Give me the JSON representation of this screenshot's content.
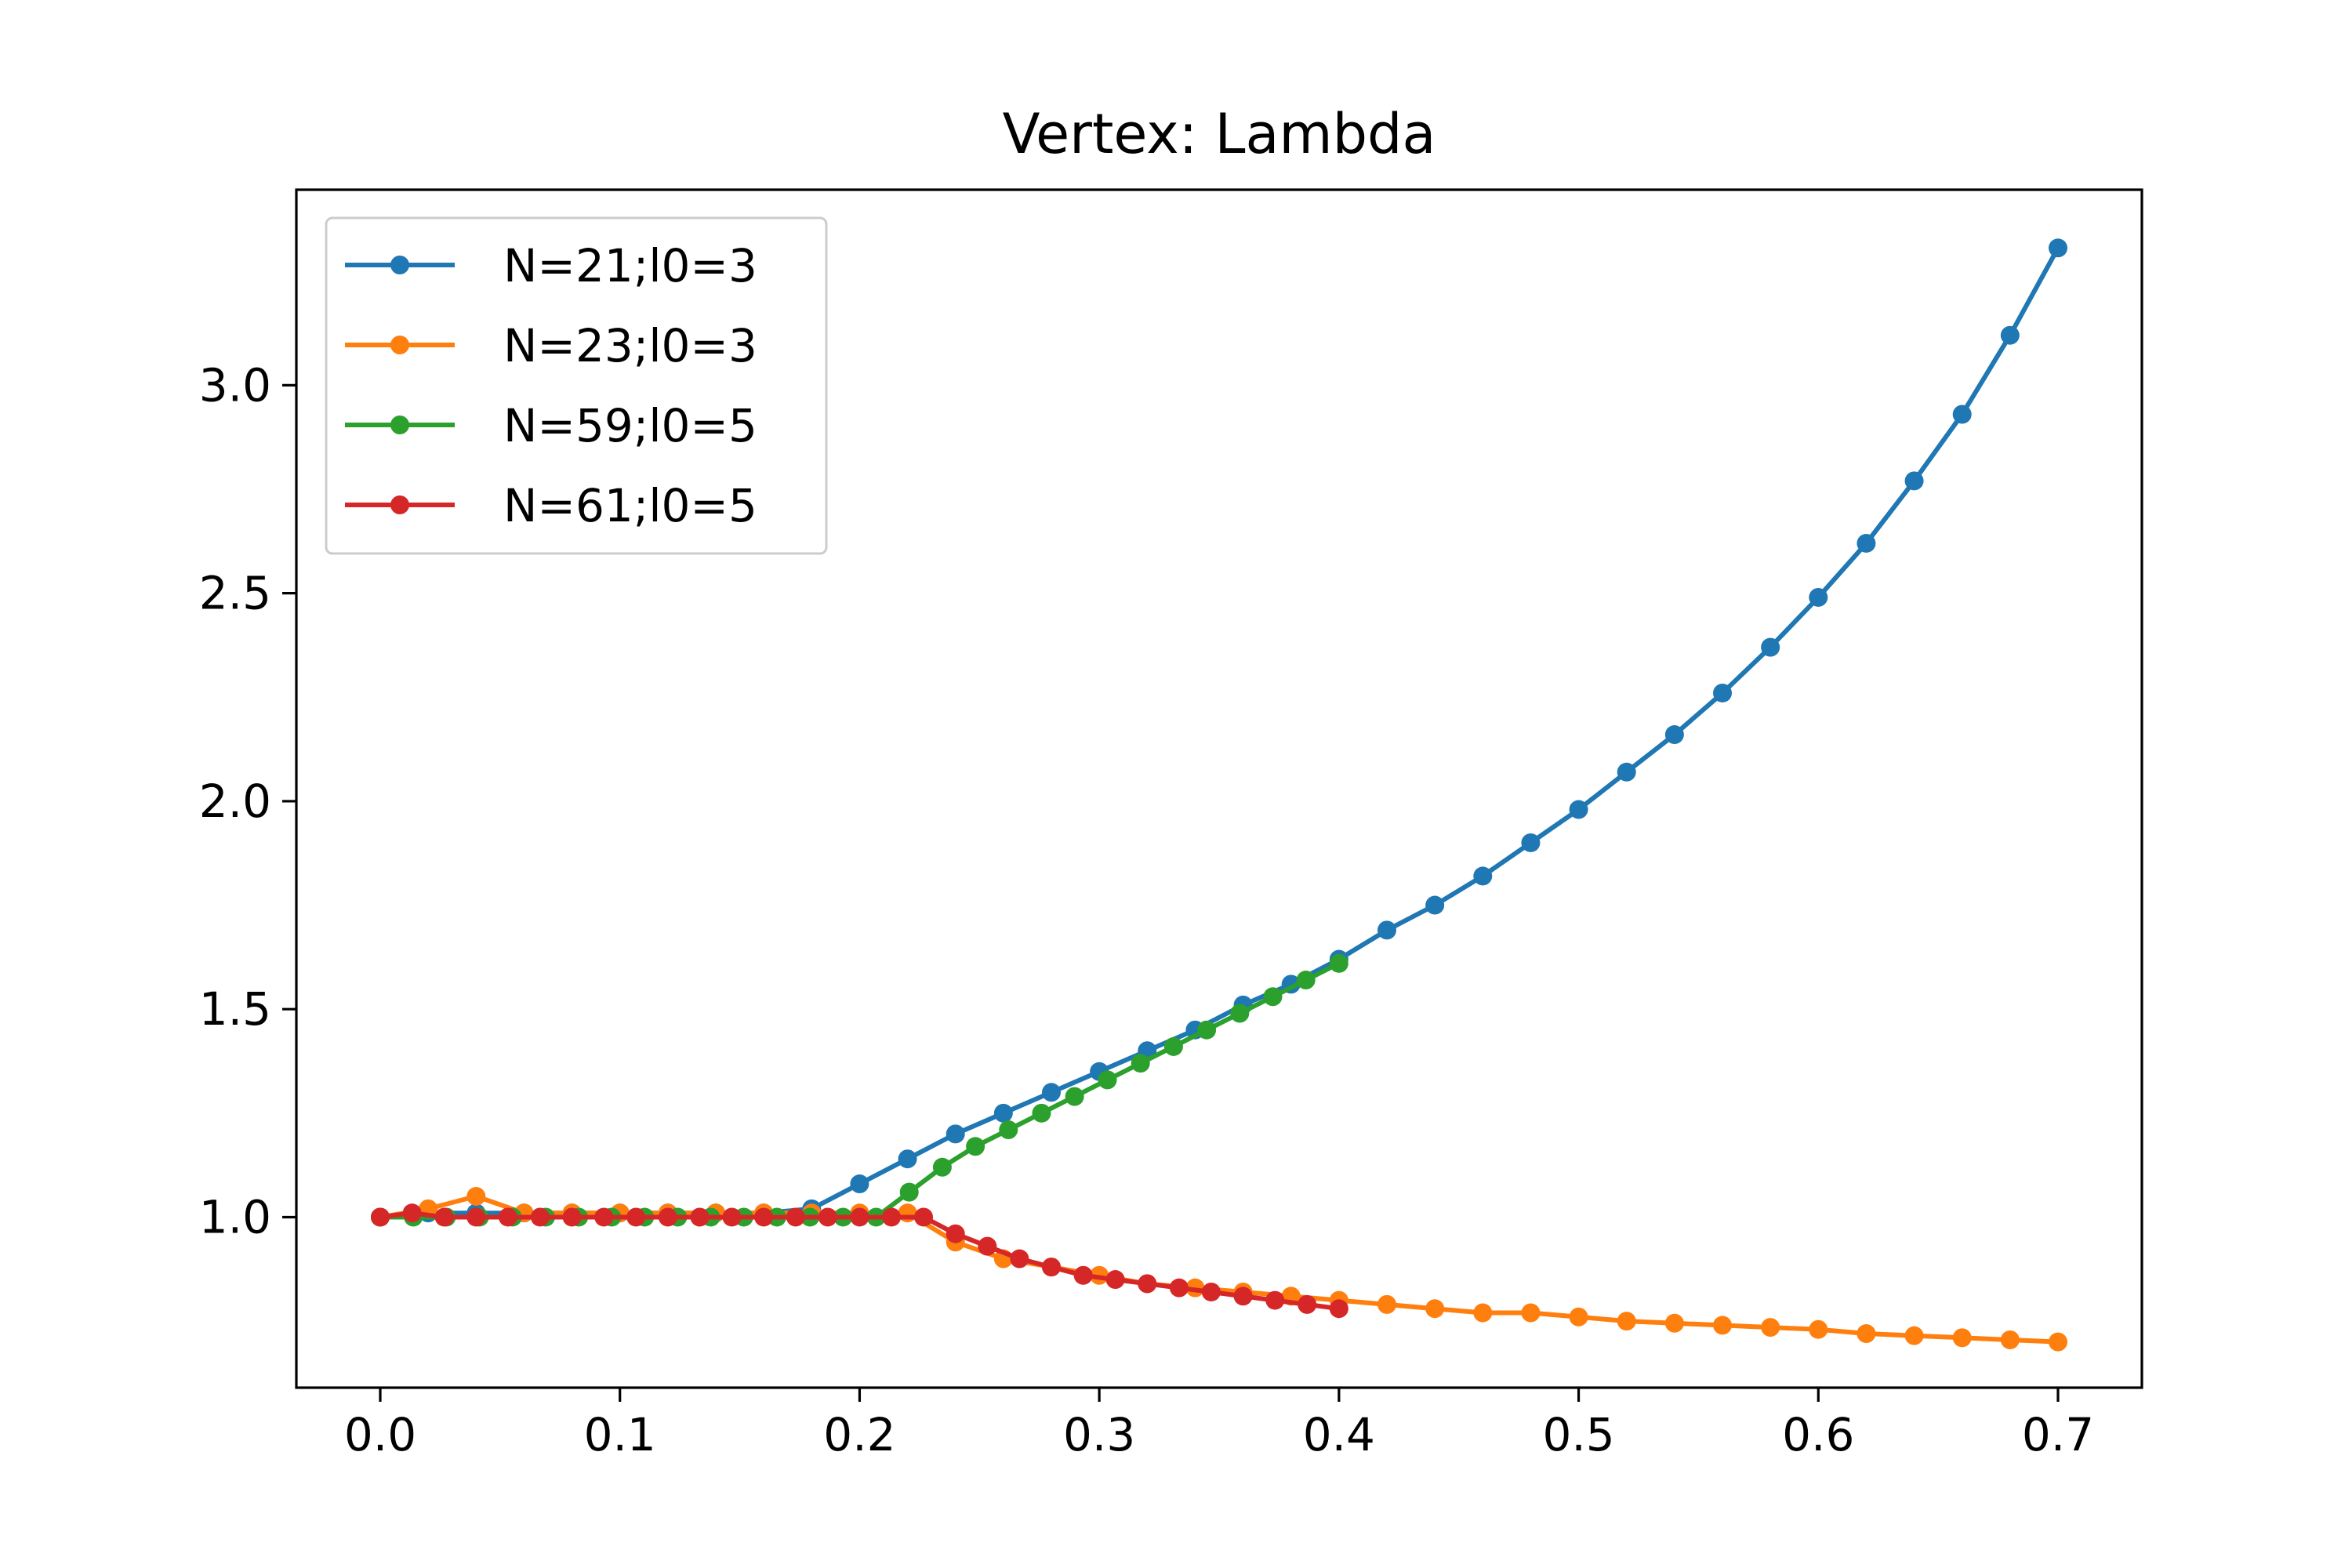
{
  "chart_data": {
    "type": "line",
    "title": "Vertex: Lambda",
    "xlabel": "",
    "ylabel": "",
    "xlim": [
      -0.035,
      0.735
    ],
    "ylim": [
      0.59,
      3.47
    ],
    "x_ticks": [
      0.0,
      0.1,
      0.2,
      0.3,
      0.4,
      0.5,
      0.6,
      0.7
    ],
    "x_tick_labels": [
      "0.0",
      "0.1",
      "0.2",
      "0.3",
      "0.4",
      "0.5",
      "0.6",
      "0.7"
    ],
    "y_ticks": [
      1.0,
      1.5,
      2.0,
      2.5,
      3.0
    ],
    "y_tick_labels": [
      "1.0",
      "1.5",
      "2.0",
      "2.5",
      "3.0"
    ],
    "grid": false,
    "legend_position": "upper-left",
    "series": [
      {
        "name": "N=21;l0=3",
        "color": "#1f77b4",
        "x": [
          0.0,
          0.02,
          0.04,
          0.06,
          0.08,
          0.1,
          0.12,
          0.14,
          0.16,
          0.18,
          0.2,
          0.22,
          0.24,
          0.26,
          0.28,
          0.3,
          0.32,
          0.34,
          0.36,
          0.38,
          0.4,
          0.42,
          0.44,
          0.46,
          0.48,
          0.5,
          0.52,
          0.54,
          0.56,
          0.58,
          0.6,
          0.62,
          0.64,
          0.66,
          0.68,
          0.7
        ],
        "y": [
          1.0,
          1.01,
          1.01,
          1.01,
          1.01,
          1.01,
          1.01,
          1.01,
          1.01,
          1.02,
          1.08,
          1.14,
          1.2,
          1.25,
          1.3,
          1.35,
          1.4,
          1.45,
          1.51,
          1.56,
          1.62,
          1.69,
          1.75,
          1.82,
          1.9,
          1.98,
          2.07,
          2.16,
          2.26,
          2.37,
          2.49,
          2.62,
          2.77,
          2.93,
          3.12,
          3.33
        ]
      },
      {
        "name": "N=23;l0=3",
        "color": "#ff7f0e",
        "x": [
          0.0,
          0.02,
          0.04,
          0.06,
          0.08,
          0.1,
          0.12,
          0.14,
          0.16,
          0.18,
          0.2,
          0.22,
          0.24,
          0.26,
          0.28,
          0.3,
          0.32,
          0.34,
          0.36,
          0.38,
          0.4,
          0.42,
          0.44,
          0.46,
          0.48,
          0.5,
          0.52,
          0.54,
          0.56,
          0.58,
          0.6,
          0.62,
          0.64,
          0.66,
          0.68,
          0.7
        ],
        "y": [
          1.0,
          1.02,
          1.05,
          1.01,
          1.01,
          1.01,
          1.01,
          1.01,
          1.01,
          1.01,
          1.01,
          1.01,
          0.94,
          0.9,
          0.88,
          0.86,
          0.84,
          0.83,
          0.82,
          0.81,
          0.8,
          0.79,
          0.78,
          0.77,
          0.77,
          0.76,
          0.75,
          0.745,
          0.74,
          0.735,
          0.73,
          0.72,
          0.715,
          0.71,
          0.705,
          0.7
        ]
      },
      {
        "name": "N=59;l0=5",
        "color": "#2ca02c",
        "x": [
          0.0,
          0.0138,
          0.0276,
          0.0414,
          0.0552,
          0.069,
          0.0828,
          0.0966,
          0.1103,
          0.1241,
          0.1379,
          0.1517,
          0.1655,
          0.1793,
          0.1931,
          0.2069,
          0.2207,
          0.2345,
          0.2483,
          0.2621,
          0.2759,
          0.2897,
          0.3034,
          0.3172,
          0.331,
          0.3448,
          0.3586,
          0.3724,
          0.3862,
          0.4
        ],
        "y": [
          1.0,
          1.0,
          1.0,
          1.0,
          1.0,
          1.0,
          1.0,
          1.0,
          1.0,
          1.0,
          1.0,
          1.0,
          1.0,
          1.0,
          1.0,
          1.0,
          1.06,
          1.12,
          1.17,
          1.21,
          1.25,
          1.29,
          1.33,
          1.37,
          1.41,
          1.45,
          1.49,
          1.53,
          1.57,
          1.61
        ]
      },
      {
        "name": "N=61;l0=5",
        "color": "#d62728",
        "x": [
          0.0,
          0.0133,
          0.0267,
          0.04,
          0.0533,
          0.0667,
          0.08,
          0.0933,
          0.1067,
          0.12,
          0.1333,
          0.1467,
          0.16,
          0.1733,
          0.1867,
          0.2,
          0.2133,
          0.2267,
          0.24,
          0.2533,
          0.2667,
          0.28,
          0.2933,
          0.3067,
          0.32,
          0.3333,
          0.3467,
          0.36,
          0.3733,
          0.3867,
          0.4
        ],
        "y": [
          1.0,
          1.01,
          1.0,
          1.0,
          1.0,
          1.0,
          1.0,
          1.0,
          1.0,
          1.0,
          1.0,
          1.0,
          1.0,
          1.0,
          1.0,
          1.0,
          1.0,
          1.0,
          0.96,
          0.93,
          0.9,
          0.88,
          0.86,
          0.85,
          0.84,
          0.83,
          0.82,
          0.81,
          0.8,
          0.79,
          0.78
        ]
      }
    ]
  }
}
